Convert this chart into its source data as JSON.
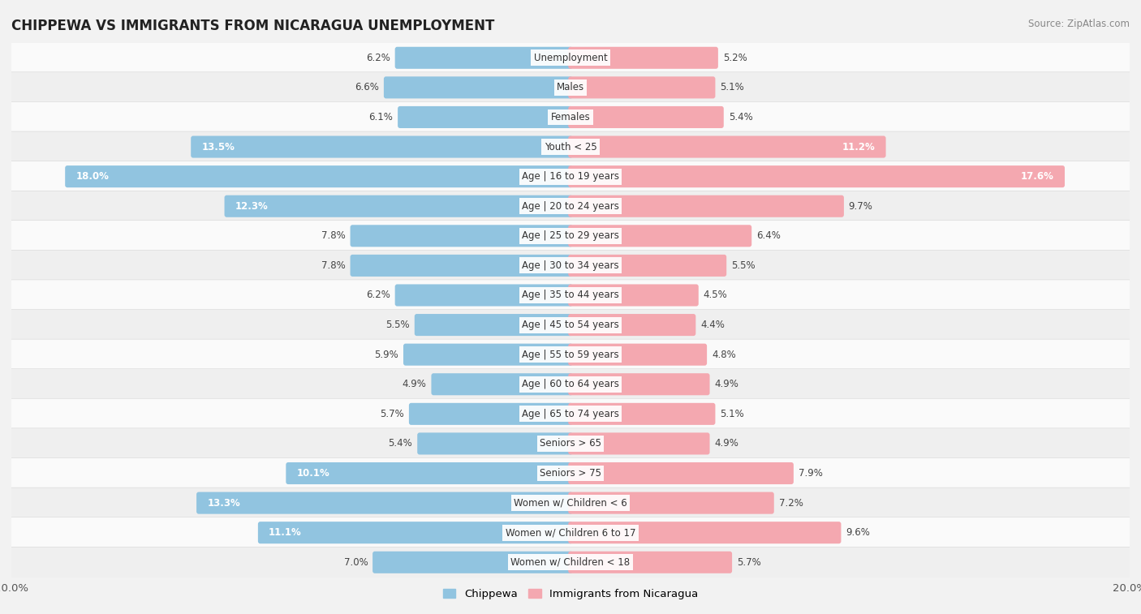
{
  "title": "CHIPPEWA VS IMMIGRANTS FROM NICARAGUA UNEMPLOYMENT",
  "source": "Source: ZipAtlas.com",
  "categories": [
    "Unemployment",
    "Males",
    "Females",
    "Youth < 25",
    "Age | 16 to 19 years",
    "Age | 20 to 24 years",
    "Age | 25 to 29 years",
    "Age | 30 to 34 years",
    "Age | 35 to 44 years",
    "Age | 45 to 54 years",
    "Age | 55 to 59 years",
    "Age | 60 to 64 years",
    "Age | 65 to 74 years",
    "Seniors > 65",
    "Seniors > 75",
    "Women w/ Children < 6",
    "Women w/ Children 6 to 17",
    "Women w/ Children < 18"
  ],
  "chippewa": [
    6.2,
    6.6,
    6.1,
    13.5,
    18.0,
    12.3,
    7.8,
    7.8,
    6.2,
    5.5,
    5.9,
    4.9,
    5.7,
    5.4,
    10.1,
    13.3,
    11.1,
    7.0
  ],
  "nicaragua": [
    5.2,
    5.1,
    5.4,
    11.2,
    17.6,
    9.7,
    6.4,
    5.5,
    4.5,
    4.4,
    4.8,
    4.9,
    5.1,
    4.9,
    7.9,
    7.2,
    9.6,
    5.7
  ],
  "chippewa_color": "#91c4e0",
  "nicaragua_color": "#f4a8b0",
  "bg_color": "#f2f2f2",
  "row_color_light": "#fafafa",
  "row_color_dark": "#efefef",
  "max_val": 20.0,
  "legend_chippewa": "Chippewa",
  "legend_nicaragua": "Immigrants from Nicaragua"
}
